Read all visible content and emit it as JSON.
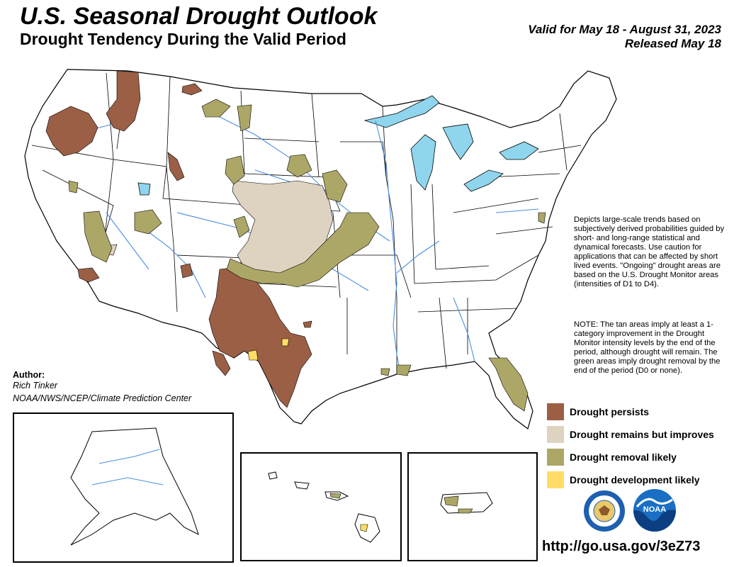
{
  "header": {
    "title": "U.S. Seasonal Drought Outlook",
    "subtitle": "Drought Tendency During the Valid Period",
    "valid": "Valid for May 18 - August 31, 2023",
    "released": "Released May 18"
  },
  "notes": {
    "description": "Depicts large-scale trends based on subjectively derived probabilities guided by short- and long-range statistical and dynamical forecasts. Use caution for applications that can be affected by short lived events. \"Ongoing\" drought areas are based on the U.S. Drought Monitor areas (intensities of D1 to D4).",
    "note": "NOTE: The tan areas imply at least a 1-category improvement in the Drought Monitor intensity levels by the end of the period, although drought will remain. The green areas imply drought removal by the end of the period (D0 or none)."
  },
  "author": {
    "heading": "Author:",
    "name": "Rich Tinker",
    "org": "NOAA/NWS/NCEP/Climate Prediction Center"
  },
  "legend": [
    {
      "label": "Drought persists",
      "color": "#9b5f45"
    },
    {
      "label": "Drought remains but improves",
      "color": "#ded3c0"
    },
    {
      "label": "Drought removal likely",
      "color": "#aca766"
    },
    {
      "label": "Drought development likely",
      "color": "#ffdd66"
    }
  ],
  "colors": {
    "water": "#8fd5ee",
    "rivers": "#4a8fe0",
    "state_lines": "#000000"
  },
  "logos": [
    "commerce-seal-icon",
    "noaa-logo-icon"
  ],
  "url": "http://go.usa.gov/3eZ73"
}
